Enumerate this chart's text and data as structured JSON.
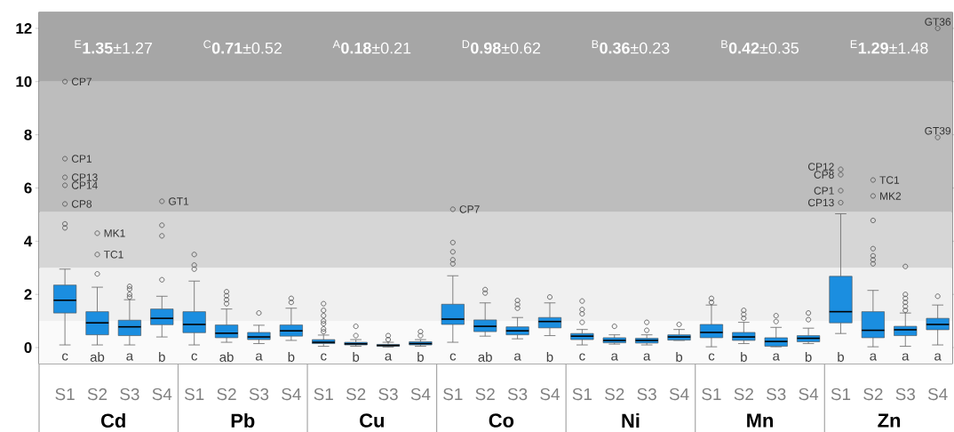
{
  "chart_data": {
    "type": "box",
    "categories": [
      "S1",
      "S2",
      "S3",
      "S4",
      "S1",
      "S2",
      "S3",
      "S4",
      "S1",
      "S2",
      "S3",
      "S4",
      "S1",
      "S2",
      "S3",
      "S4",
      "S1",
      "S2",
      "S3",
      "S4",
      "S1",
      "S2",
      "S3",
      "S4",
      "S1",
      "S2",
      "S3",
      "S4"
    ],
    "color": "#1b8ee0",
    "boxes": [
      {
        "low": 0.1,
        "q1": 1.3,
        "median": 1.78,
        "q3": 2.35,
        "high": 2.95,
        "outliers": [
          4.5,
          4.65,
          5.4,
          6.1,
          6.4,
          7.1,
          10.0
        ]
      },
      {
        "low": 0.1,
        "q1": 0.48,
        "median": 0.93,
        "q3": 1.35,
        "high": 2.27,
        "outliers": [
          2.77,
          3.5,
          4.3
        ]
      },
      {
        "low": 0.1,
        "q1": 0.45,
        "median": 0.78,
        "q3": 1.03,
        "high": 1.8,
        "outliers": [
          1.9,
          2.0,
          2.2,
          2.3
        ]
      },
      {
        "low": 0.4,
        "q1": 0.86,
        "median": 1.1,
        "q3": 1.45,
        "high": 1.93,
        "outliers": [
          2.55,
          4.2,
          4.6,
          5.5
        ]
      },
      {
        "low": 0.1,
        "q1": 0.56,
        "median": 0.87,
        "q3": 1.35,
        "high": 2.5,
        "outliers": [
          2.95,
          3.1,
          3.5
        ]
      },
      {
        "low": 0.2,
        "q1": 0.37,
        "median": 0.54,
        "q3": 0.85,
        "high": 1.45,
        "outliers": [
          1.65,
          1.8,
          1.95,
          2.1
        ]
      },
      {
        "low": 0.15,
        "q1": 0.3,
        "median": 0.4,
        "q3": 0.57,
        "high": 0.84,
        "outliers": [
          1.3
        ]
      },
      {
        "low": 0.27,
        "q1": 0.43,
        "median": 0.63,
        "q3": 0.85,
        "high": 1.48,
        "outliers": [
          1.7,
          1.85
        ]
      },
      {
        "low": 0.05,
        "q1": 0.15,
        "median": 0.2,
        "q3": 0.3,
        "high": 0.47,
        "outliers": [
          0.6,
          0.7,
          0.9,
          1.0,
          1.2,
          1.4,
          1.65
        ]
      },
      {
        "low": 0.05,
        "q1": 0.1,
        "median": 0.14,
        "q3": 0.2,
        "high": 0.3,
        "outliers": [
          0.45,
          0.8
        ]
      },
      {
        "low": 0.02,
        "q1": 0.05,
        "median": 0.08,
        "q3": 0.12,
        "high": 0.2,
        "outliers": [
          0.3,
          0.45
        ]
      },
      {
        "low": 0.05,
        "q1": 0.1,
        "median": 0.15,
        "q3": 0.22,
        "high": 0.3,
        "outliers": [
          0.45,
          0.6
        ]
      },
      {
        "low": 0.2,
        "q1": 0.87,
        "median": 1.07,
        "q3": 1.63,
        "high": 2.7,
        "outliers": [
          3.15,
          3.3,
          3.6,
          3.95,
          5.2
        ]
      },
      {
        "low": 0.43,
        "q1": 0.6,
        "median": 0.8,
        "q3": 1.04,
        "high": 1.68,
        "outliers": [
          2.05,
          2.18
        ]
      },
      {
        "low": 0.33,
        "q1": 0.48,
        "median": 0.63,
        "q3": 0.78,
        "high": 1.13,
        "outliers": [
          1.48,
          1.62,
          1.77
        ]
      },
      {
        "low": 0.45,
        "q1": 0.74,
        "median": 0.98,
        "q3": 1.13,
        "high": 1.68,
        "outliers": [
          1.9
        ]
      },
      {
        "low": 0.1,
        "q1": 0.3,
        "median": 0.43,
        "q3": 0.53,
        "high": 0.68,
        "outliers": [
          0.95,
          1.27,
          1.43,
          1.75
        ]
      },
      {
        "low": 0.13,
        "q1": 0.18,
        "median": 0.27,
        "q3": 0.37,
        "high": 0.48,
        "outliers": [
          0.8
        ]
      },
      {
        "low": 0.1,
        "q1": 0.17,
        "median": 0.27,
        "q3": 0.35,
        "high": 0.48,
        "outliers": [
          0.65,
          0.95
        ]
      },
      {
        "low": 0.27,
        "q1": 0.28,
        "median": 0.4,
        "q3": 0.48,
        "high": 0.68,
        "outliers": [
          0.87
        ]
      },
      {
        "low": 0.03,
        "q1": 0.37,
        "median": 0.57,
        "q3": 0.87,
        "high": 1.6,
        "outliers": [
          1.7,
          1.85
        ]
      },
      {
        "low": 0.15,
        "q1": 0.27,
        "median": 0.4,
        "q3": 0.57,
        "high": 0.95,
        "outliers": [
          1.1,
          1.25,
          1.4
        ]
      },
      {
        "low": 0.03,
        "q1": 0.05,
        "median": 0.23,
        "q3": 0.37,
        "high": 0.76,
        "outliers": [
          0.98,
          1.2
        ]
      },
      {
        "low": 0.15,
        "q1": 0.22,
        "median": 0.35,
        "q3": 0.45,
        "high": 0.73,
        "outliers": [
          1.05,
          1.3
        ]
      },
      {
        "low": 0.53,
        "q1": 0.93,
        "median": 1.35,
        "q3": 2.68,
        "high": 5.03,
        "outliers": [
          5.45,
          5.9,
          6.5,
          6.7
        ]
      },
      {
        "low": 0.03,
        "q1": 0.37,
        "median": 0.65,
        "q3": 1.35,
        "high": 2.15,
        "outliers": [
          3.15,
          3.3,
          3.45,
          3.72,
          4.78,
          5.7,
          6.3
        ]
      },
      {
        "low": 0.05,
        "q1": 0.45,
        "median": 0.67,
        "q3": 0.8,
        "high": 1.3,
        "outliers": [
          1.4,
          1.55,
          1.7,
          1.85,
          2.0,
          3.05
        ]
      },
      {
        "low": 0.1,
        "q1": 0.67,
        "median": 0.87,
        "q3": 1.1,
        "high": 1.6,
        "outliers": [
          1.93,
          7.9,
          12.0
        ]
      }
    ],
    "ylim": [
      -0.6,
      12.6
    ],
    "yticks": [
      0,
      2,
      4,
      6,
      8,
      10,
      12
    ],
    "bands": [
      {
        "axis": "y",
        "from": -0.6,
        "to": 1,
        "color": "#fafafa"
      },
      {
        "axis": "y",
        "from": 1,
        "to": 3,
        "color": "#f0f0f0"
      },
      {
        "axis": "y",
        "from": 3,
        "to": 5.1,
        "color": "#d6d6d6"
      },
      {
        "axis": "y",
        "from": 5.1,
        "to": 10,
        "color": "#bdbdbd"
      },
      {
        "axis": "y",
        "from": 10,
        "to": 12.6,
        "color": "#a6a6a6"
      }
    ],
    "annotations": [
      "$^{E}$**1.35**±1.27",
      "$^{C}$**0.71**±0.52",
      "$^{A}$**0.18**±0.21",
      "$^{D}$**0.98**±0.62",
      "$^{B}$**0.36**±0.23",
      "$^{B}$**0.42**±0.35",
      "$^{E}$**1.29**±1.48",
      "c",
      "ab",
      "a",
      "b",
      "c",
      "ab",
      "a",
      "b",
      "c",
      "b",
      "a",
      "b",
      "c",
      "ab",
      "a",
      "b",
      "c",
      "a",
      "a",
      "b",
      "c",
      "b",
      "a",
      "b",
      "b",
      "a",
      "a",
      "a",
      "Cd",
      "Pb",
      "Cu",
      "Co",
      "Ni",
      "Mn",
      "Zn",
      "CP7",
      "CP1",
      "CP13",
      "CP14",
      "CP8",
      "MK1",
      "TC1",
      "GT1",
      "CP7",
      "CP12",
      "CP8",
      "CP1",
      "CP13",
      "TC1",
      "MK2",
      "GT39",
      "GT36"
    ]
  }
}
